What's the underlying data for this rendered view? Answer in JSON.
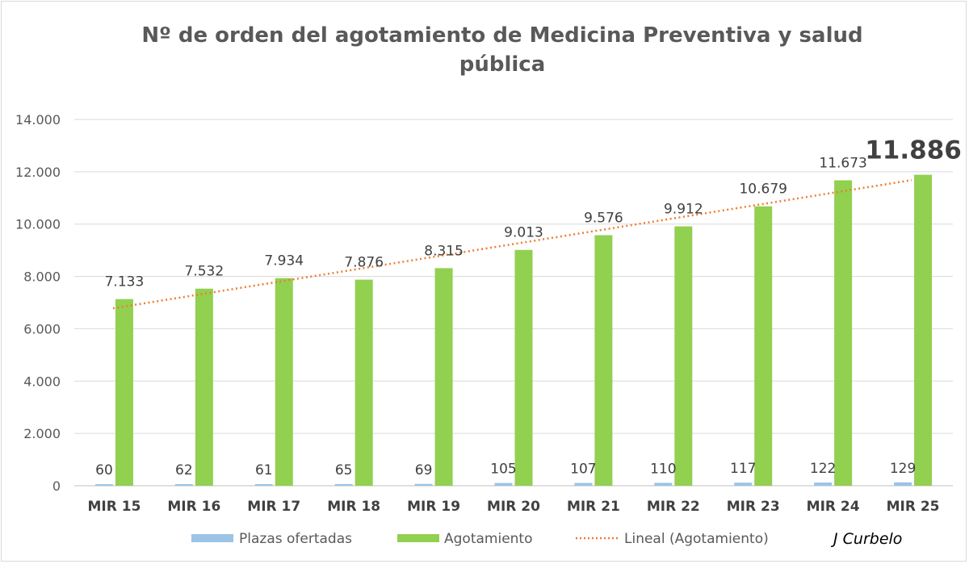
{
  "chart_data": {
    "type": "bar",
    "title_lines": [
      "Nº de orden del agotamiento de Medicina Preventiva y salud",
      "pública"
    ],
    "categories": [
      "MIR 15",
      "MIR 16",
      "MIR 17",
      "MIR 18",
      "MIR 19",
      "MIR 20",
      "MIR 21",
      "MIR 22",
      "MIR 23",
      "MIR 24",
      "MIR 25"
    ],
    "series": [
      {
        "name": "Plazas ofertadas",
        "color": "#9dc3e6",
        "values": [
          60,
          62,
          61,
          65,
          69,
          105,
          107,
          110,
          117,
          122,
          129
        ],
        "labels": [
          "60",
          "62",
          "61",
          "65",
          "69",
          "105",
          "107",
          "110",
          "117",
          "122",
          "129"
        ]
      },
      {
        "name": "Agotamiento",
        "color": "#92d050",
        "values": [
          7133,
          7532,
          7934,
          7876,
          8315,
          9013,
          9576,
          9912,
          10679,
          11673,
          11886
        ],
        "labels": [
          "7.133",
          "7.532",
          "7.934",
          "7.876",
          "8.315",
          "9.013",
          "9.576",
          "9.912",
          "10.679",
          "11.673",
          "11.886"
        ]
      }
    ],
    "trendline": {
      "name": "Lineal (Agotamiento)",
      "of_series": "Agotamiento",
      "color": "#ed7d31",
      "style": "dotted"
    },
    "ylim": [
      0,
      14000
    ],
    "yticks": [
      0,
      2000,
      4000,
      6000,
      8000,
      10000,
      12000,
      14000
    ],
    "ytick_labels": [
      "0",
      "2.000",
      "4.000",
      "6.000",
      "8.000",
      "10.000",
      "12.000",
      "14.000"
    ],
    "gridlines": true,
    "legend_position": "bottom",
    "highlight_last_label": true
  },
  "author": "J Curbelo"
}
